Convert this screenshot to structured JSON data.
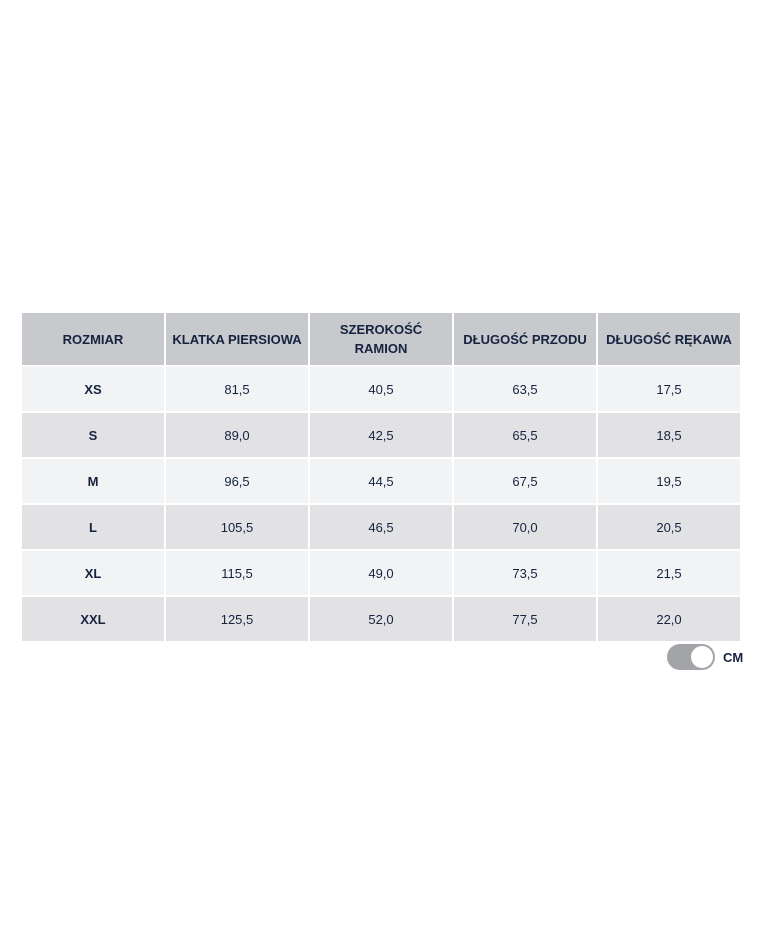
{
  "table": {
    "headers": [
      "ROZMIAR",
      "KLATKA PIERSIOWA",
      "SZEROKOŚĆ RAMION",
      "DŁUGOŚĆ PRZODU",
      "DŁUGOŚĆ RĘKAWA"
    ],
    "rows": [
      [
        "XS",
        "81,5",
        "40,5",
        "63,5",
        "17,5"
      ],
      [
        "S",
        "89,0",
        "42,5",
        "65,5",
        "18,5"
      ],
      [
        "M",
        "96,5",
        "44,5",
        "67,5",
        "19,5"
      ],
      [
        "L",
        "105,5",
        "46,5",
        "70,0",
        "20,5"
      ],
      [
        "XL",
        "115,5",
        "49,0",
        "73,5",
        "21,5"
      ],
      [
        "XXL",
        "125,5",
        "52,0",
        "77,5",
        "22,0"
      ]
    ]
  },
  "unit_toggle": {
    "label": "CM",
    "on": true
  }
}
